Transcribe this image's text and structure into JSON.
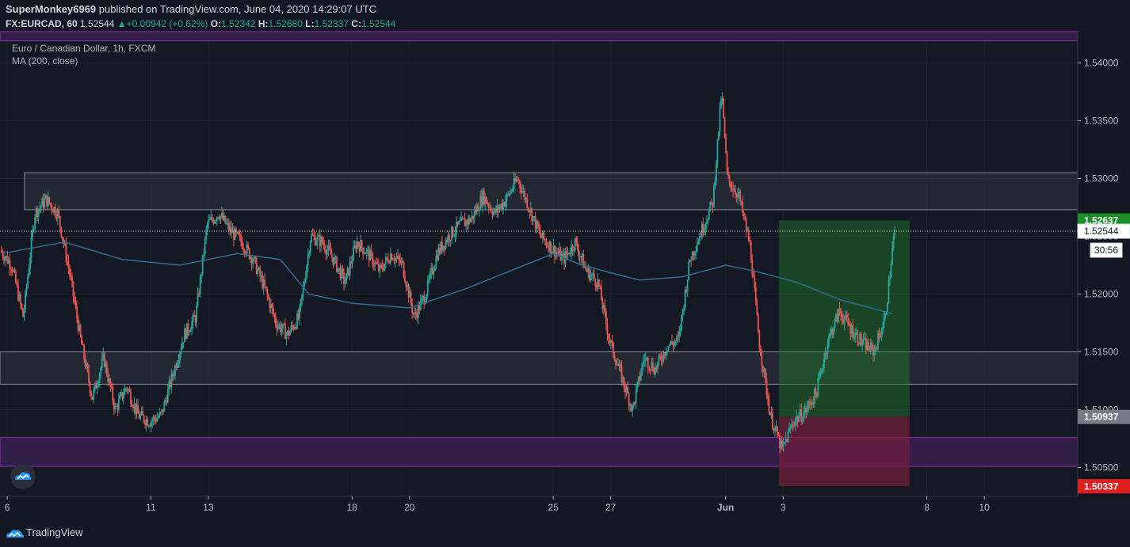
{
  "header": {
    "user": "SuperMonkey6969",
    "published": " published on TradingView.com, June 04, 2020 14:29:07 UTC",
    "symbol": "FX:EURCAD, 60",
    "last": "1.52544",
    "change": "+0.00942 (+0.62%)",
    "o_label": "O:",
    "o": "1.52342",
    "h_label": "H:",
    "h": "1.52680",
    "l_label": "L:",
    "l": "1.52337",
    "c_label": "C:",
    "c": "1.52544"
  },
  "legend": {
    "title": "Euro / Canadian Dollar, 1h, FXCM",
    "indicator": "MA (200, close)"
  },
  "footer": {
    "brand": "TradingView"
  },
  "colors": {
    "background": "#141823",
    "up": "#26a69a",
    "down": "#ef5350",
    "ma": "#2f6e8f",
    "zone_gray": "#363a45",
    "zone_purple": "#5b2a7a",
    "target": "#1f7a2a",
    "stop": "#7a1f3a"
  },
  "chart_data": {
    "type": "candlestick",
    "title": "Euro / Canadian Dollar, 1h, FXCM",
    "ylim": [
      1.5025,
      1.5427
    ],
    "y_ticks": [
      "1.50500",
      "1.51000",
      "1.51500",
      "1.52000",
      "1.52500",
      "1.53000",
      "1.53500",
      "1.54000"
    ],
    "x_ticks": [
      {
        "label": "6",
        "day": 0
      },
      {
        "label": "11",
        "day": 5
      },
      {
        "label": "13",
        "day": 7
      },
      {
        "label": "18",
        "day": 12
      },
      {
        "label": "20",
        "day": 14
      },
      {
        "label": "25",
        "day": 19
      },
      {
        "label": "27",
        "day": 21
      },
      {
        "label": "Jun",
        "day": 25
      },
      {
        "label": "3",
        "day": 27
      },
      {
        "label": "8",
        "day": 32
      },
      {
        "label": "10",
        "day": 34
      }
    ],
    "x_range_days": [
      -0.25,
      37.25
    ],
    "price_path": [
      [
        -0.2,
        1.5238
      ],
      [
        0.2,
        1.5225
      ],
      [
        0.6,
        1.518
      ],
      [
        1.0,
        1.527
      ],
      [
        1.4,
        1.5282
      ],
      [
        1.8,
        1.527
      ],
      [
        2.2,
        1.522
      ],
      [
        2.6,
        1.516
      ],
      [
        3.0,
        1.511
      ],
      [
        3.4,
        1.5145
      ],
      [
        3.8,
        1.51
      ],
      [
        4.2,
        1.512
      ],
      [
        4.6,
        1.5095
      ],
      [
        5.0,
        1.509
      ],
      [
        5.4,
        1.5095
      ],
      [
        5.8,
        1.513
      ],
      [
        6.2,
        1.5165
      ],
      [
        6.6,
        1.518
      ],
      [
        7.0,
        1.526
      ],
      [
        7.4,
        1.527
      ],
      [
        7.8,
        1.5255
      ],
      [
        8.2,
        1.5245
      ],
      [
        8.6,
        1.523
      ],
      [
        9.0,
        1.5205
      ],
      [
        9.4,
        1.5175
      ],
      [
        9.8,
        1.5165
      ],
      [
        10.2,
        1.518
      ],
      [
        10.6,
        1.525
      ],
      [
        11.0,
        1.5245
      ],
      [
        11.4,
        1.523
      ],
      [
        11.8,
        1.521
      ],
      [
        12.2,
        1.5245
      ],
      [
        12.6,
        1.5235
      ],
      [
        13.0,
        1.522
      ],
      [
        13.4,
        1.5235
      ],
      [
        13.8,
        1.5225
      ],
      [
        14.2,
        1.518
      ],
      [
        14.6,
        1.52
      ],
      [
        15.0,
        1.5235
      ],
      [
        15.4,
        1.525
      ],
      [
        15.8,
        1.526
      ],
      [
        16.2,
        1.5265
      ],
      [
        16.6,
        1.5285
      ],
      [
        17.0,
        1.527
      ],
      [
        17.4,
        1.5282
      ],
      [
        17.8,
        1.53
      ],
      [
        18.2,
        1.5275
      ],
      [
        18.6,
        1.525
      ],
      [
        19.0,
        1.524
      ],
      [
        19.4,
        1.523
      ],
      [
        19.8,
        1.5245
      ],
      [
        20.2,
        1.522
      ],
      [
        20.6,
        1.521
      ],
      [
        21.0,
        1.516
      ],
      [
        21.4,
        1.513
      ],
      [
        21.8,
        1.51
      ],
      [
        22.2,
        1.5145
      ],
      [
        22.6,
        1.5135
      ],
      [
        23.0,
        1.5155
      ],
      [
        23.4,
        1.516
      ],
      [
        23.8,
        1.523
      ],
      [
        24.2,
        1.5255
      ],
      [
        24.6,
        1.528
      ],
      [
        24.9,
        1.5375
      ],
      [
        25.1,
        1.53
      ],
      [
        25.5,
        1.5285
      ],
      [
        25.9,
        1.524
      ],
      [
        26.2,
        1.516
      ],
      [
        26.6,
        1.5095
      ],
      [
        27.0,
        1.5065
      ],
      [
        27.4,
        1.509
      ],
      [
        27.8,
        1.5098
      ],
      [
        28.2,
        1.5115
      ],
      [
        28.6,
        1.516
      ],
      [
        29.0,
        1.5185
      ],
      [
        29.4,
        1.517
      ],
      [
        29.8,
        1.5158
      ],
      [
        30.2,
        1.515
      ],
      [
        30.6,
        1.518
      ],
      [
        30.9,
        1.5252
      ]
    ],
    "ma_path": [
      [
        -0.2,
        1.5235
      ],
      [
        2.0,
        1.5245
      ],
      [
        4.0,
        1.523
      ],
      [
        6.0,
        1.5225
      ],
      [
        8.0,
        1.5235
      ],
      [
        9.5,
        1.523
      ],
      [
        10.5,
        1.52
      ],
      [
        12.0,
        1.5192
      ],
      [
        14.0,
        1.5188
      ],
      [
        16.0,
        1.5205
      ],
      [
        18.0,
        1.5225
      ],
      [
        19.0,
        1.5235
      ],
      [
        20.0,
        1.5225
      ],
      [
        22.0,
        1.5212
      ],
      [
        23.5,
        1.5215
      ],
      [
        25.0,
        1.5225
      ],
      [
        26.0,
        1.522
      ],
      [
        27.5,
        1.521
      ],
      [
        29.0,
        1.5195
      ],
      [
        30.8,
        1.5183
      ]
    ],
    "zones": [
      {
        "type": "resistance",
        "y_low": 1.5273,
        "y_high": 1.5305,
        "x_start": 0.6
      },
      {
        "type": "support",
        "y_low": 1.5122,
        "y_high": 1.515,
        "x_start": -0.25
      },
      {
        "type": "demand",
        "y_low": 1.5051,
        "y_high": 1.5076,
        "x_start": -0.25
      },
      {
        "type": "top",
        "y_low": 1.5419,
        "y_high": 1.5427,
        "x_start": -0.25
      }
    ],
    "position": {
      "type": "long",
      "x_start_day": 26.85,
      "x_end_day": 31.4,
      "entry": 1.50937,
      "target": 1.52637,
      "stop": 1.50337
    },
    "price_labels": [
      {
        "value": 1.52637,
        "text": "1.52637",
        "style": "target"
      },
      {
        "value": 1.52544,
        "text": "1.52544",
        "style": "last",
        "countdown": "30:56"
      },
      {
        "value": 1.50937,
        "text": "1.50937",
        "style": "entry"
      },
      {
        "value": 1.50337,
        "text": "1.50337",
        "style": "stop"
      }
    ],
    "current_price": 1.52544
  }
}
